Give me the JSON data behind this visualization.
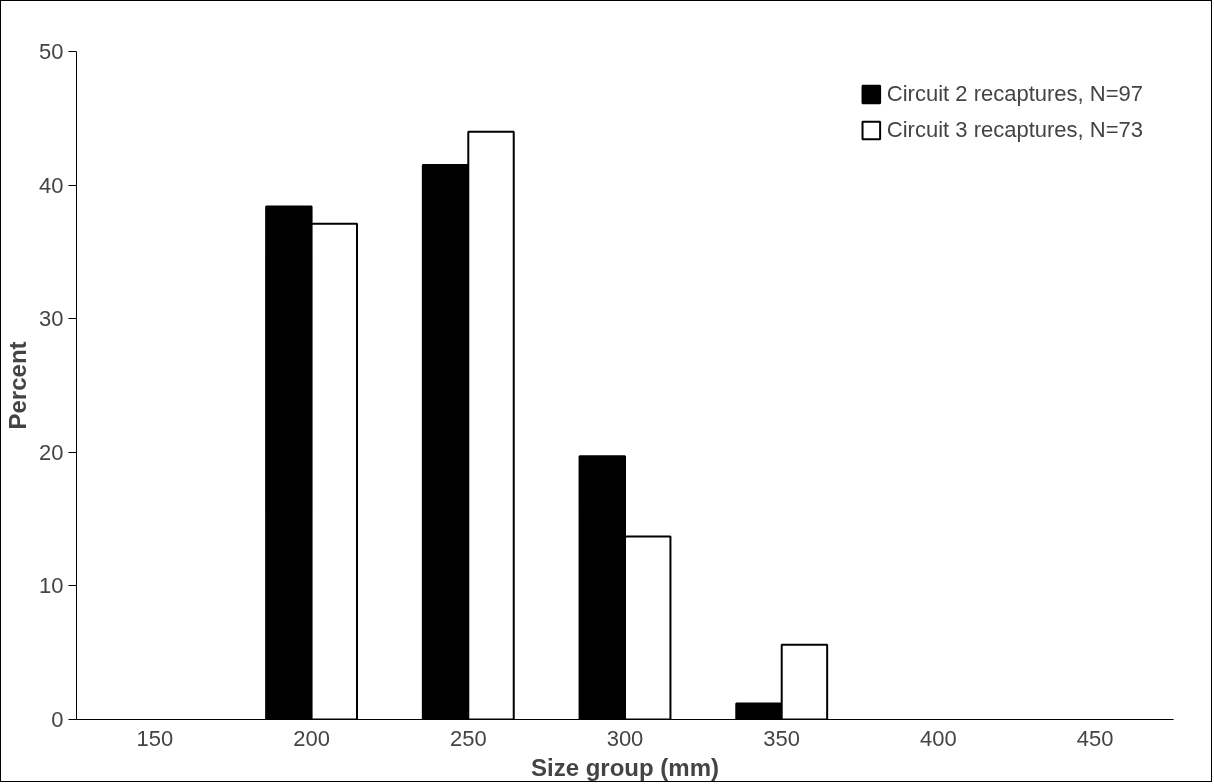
{
  "chart_data": {
    "type": "bar",
    "xlabel": "Size group (mm)",
    "ylabel": "Percent",
    "categories": [
      "150",
      "200",
      "250",
      "300",
      "350",
      "400",
      "450"
    ],
    "series": [
      {
        "name": "Circuit 2 recaptures, N=97",
        "color": "#000000",
        "values": [
          null,
          38.4,
          41.5,
          19.7,
          1.2,
          null,
          null
        ]
      },
      {
        "name": "Circuit 3 recaptures, N=73",
        "color": "#ffffff",
        "values": [
          null,
          37.1,
          44.0,
          13.7,
          5.6,
          null,
          null
        ]
      }
    ],
    "ylim": [
      0,
      50
    ],
    "yticks": [
      0,
      10,
      20,
      30,
      40,
      50
    ],
    "grid": false,
    "legend": "top right"
  }
}
